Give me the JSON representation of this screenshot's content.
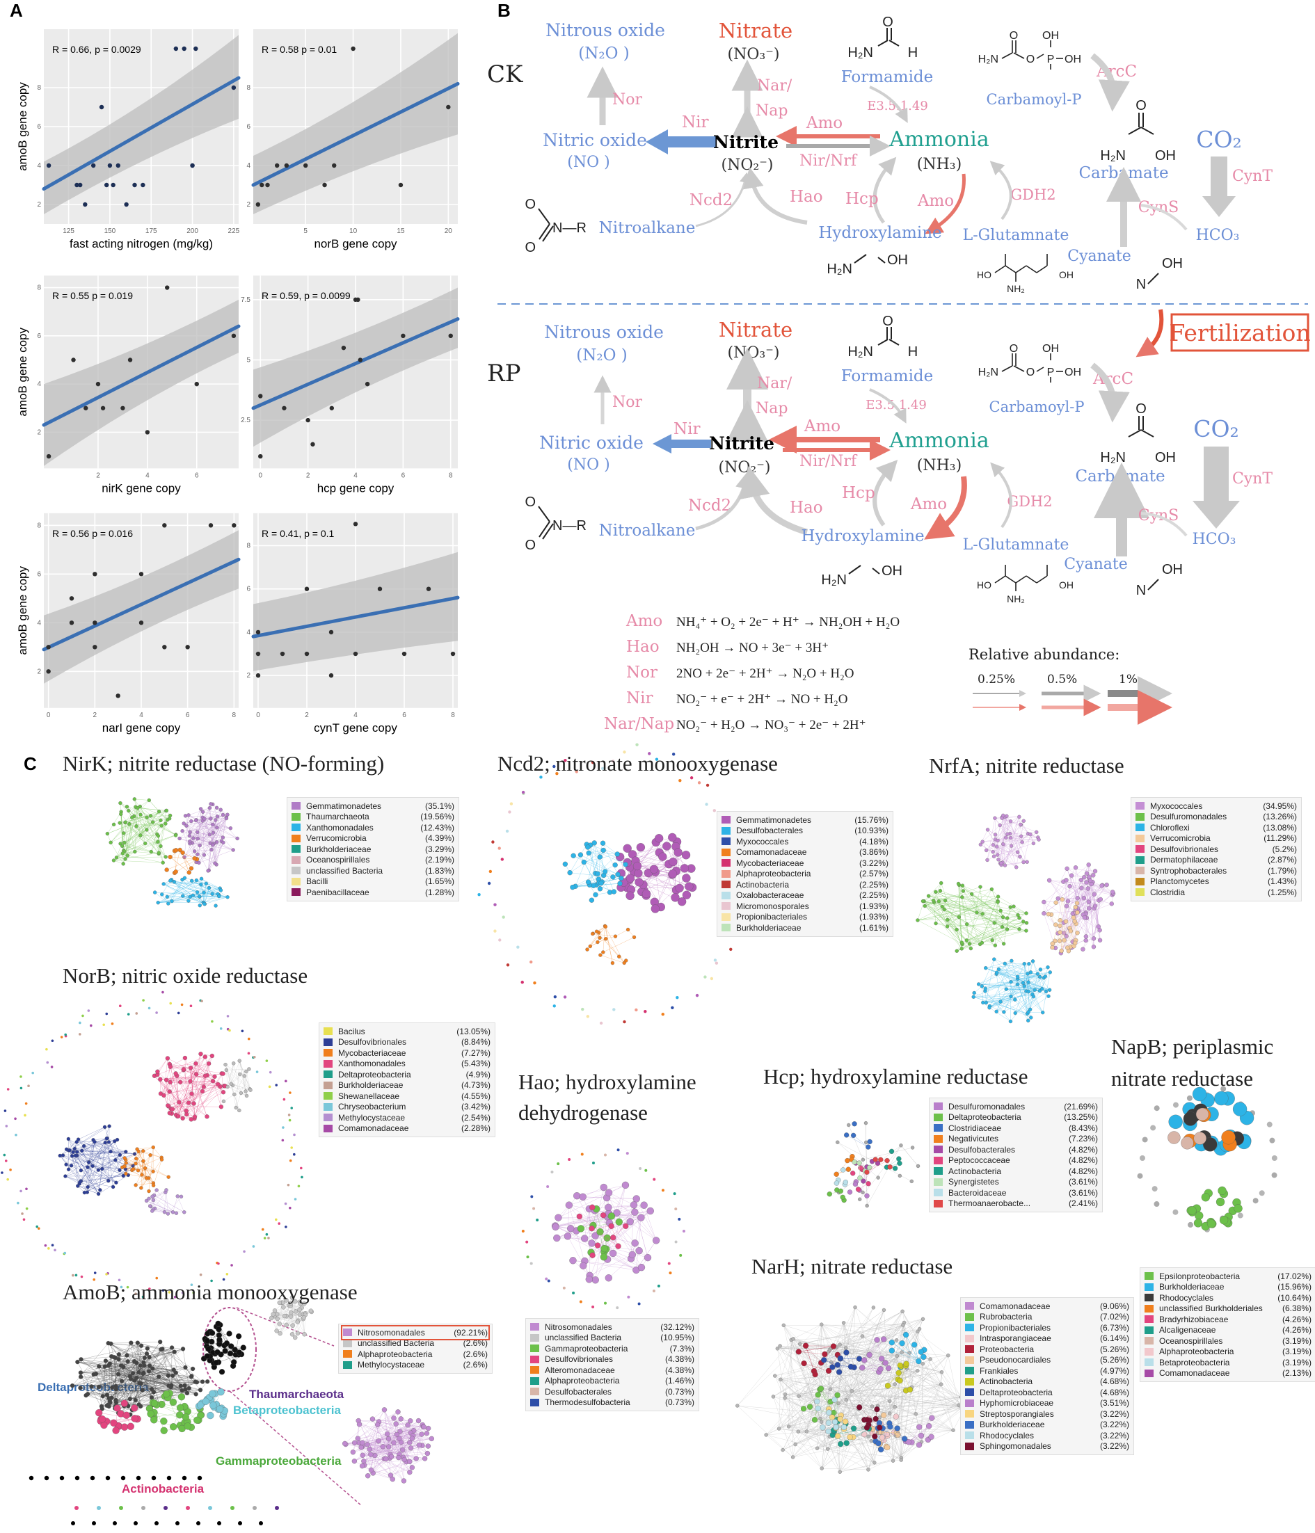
{
  "panel_labels": {
    "a": "A",
    "b": "B",
    "c": "C"
  },
  "chart_data": [
    {
      "type": "scatter",
      "title": "",
      "xlabel": "fast acting nitrogen (mg/kg)",
      "ylabel": "amoB gene copy",
      "stat": "R = 0.66, p = 0.0029",
      "x": [
        113,
        130,
        132,
        135,
        140,
        145,
        148,
        150,
        152,
        155,
        160,
        165,
        170,
        190,
        195,
        200,
        200,
        202,
        225
      ],
      "y": [
        4,
        3,
        3,
        2,
        4,
        7,
        3,
        4,
        3,
        4,
        2,
        3,
        3,
        10,
        10,
        4,
        4,
        10,
        8
      ],
      "xticks": [
        125,
        150,
        175,
        200,
        225
      ],
      "yticks": [
        2,
        4,
        6,
        8
      ],
      "xlim": [
        110,
        228
      ],
      "ylim": [
        1,
        11
      ],
      "fit": [
        2.8,
        8.5
      ],
      "ci_low": [
        1.5,
        6.4
      ],
      "ci_high": [
        4.2,
        10.7
      ]
    },
    {
      "type": "scatter",
      "title": "",
      "xlabel": "norB gene copy",
      "ylabel": "",
      "stat": "R = 0.58  p = 0.01",
      "x": [
        0,
        0.4,
        1,
        2,
        3,
        5,
        7,
        8,
        10,
        15,
        20
      ],
      "y": [
        2,
        3,
        3,
        4,
        4,
        4,
        3,
        4,
        10,
        3,
        7
      ],
      "xticks": [
        5,
        10,
        15,
        20
      ],
      "yticks": [
        2,
        4,
        6,
        8
      ],
      "xlim": [
        -0.5,
        21
      ],
      "ylim": [
        1,
        11
      ],
      "fit": [
        3.0,
        8.2
      ],
      "ci_low": [
        1.5,
        5.6
      ],
      "ci_high": [
        4.5,
        10.8
      ]
    },
    {
      "type": "scatter",
      "title": "",
      "xlabel": "nirK gene copy",
      "ylabel": "amoB gene copy",
      "stat": "R = 0.55  p = 0.019",
      "x": [
        0,
        1,
        1.5,
        2,
        2.2,
        3,
        3.3,
        4,
        4.8,
        6,
        7.5
      ],
      "y": [
        1,
        5,
        3,
        4,
        3,
        3,
        5,
        2,
        8,
        4,
        6
      ],
      "xticks": [
        2,
        4,
        6
      ],
      "yticks": [
        2,
        4,
        6,
        8
      ],
      "xlim": [
        -0.2,
        7.7
      ],
      "ylim": [
        0.5,
        8.5
      ],
      "fit": [
        2.3,
        6.4
      ],
      "ci_low": [
        0.6,
        5.3
      ],
      "ci_high": [
        4.0,
        7.5
      ]
    },
    {
      "type": "scatter",
      "title": "",
      "xlabel": "hcp gene copy",
      "ylabel": "",
      "stat": "R = 0.59, p = 0.0099",
      "x": [
        0,
        0,
        1,
        2,
        2.2,
        3,
        3.5,
        4,
        4.1,
        4.2,
        4.5,
        6,
        8
      ],
      "y": [
        1,
        3.5,
        3,
        2.5,
        1.5,
        3,
        5.5,
        7.5,
        7.5,
        5,
        4,
        6,
        6
      ],
      "xticks": [
        0,
        2,
        4,
        6,
        8
      ],
      "yticks": [
        2.5,
        5.0,
        7.5
      ],
      "xlim": [
        -0.3,
        8.3
      ],
      "ylim": [
        0.5,
        8.5
      ],
      "fit": [
        3.0,
        6.7
      ],
      "ci_low": [
        1.4,
        5.5
      ],
      "ci_high": [
        4.6,
        8.0
      ]
    },
    {
      "type": "scatter",
      "title": "",
      "xlabel": "narI gene copy",
      "ylabel": "amoB gene copy",
      "stat": "R = 0.56  p = 0.016",
      "x": [
        0,
        0,
        1,
        1,
        2,
        2,
        2,
        3,
        4,
        4,
        5,
        5,
        6,
        7,
        8
      ],
      "y": [
        2,
        3,
        5,
        4,
        4,
        3,
        6,
        1,
        4,
        6,
        3,
        8,
        3,
        8,
        8
      ],
      "xticks": [
        0,
        2,
        4,
        6,
        8
      ],
      "yticks": [
        2,
        4,
        6,
        8
      ],
      "xlim": [
        -0.2,
        8.2
      ],
      "ylim": [
        0.5,
        8.5
      ],
      "fit": [
        2.9,
        6.6
      ],
      "ci_low": [
        1.5,
        5.4
      ],
      "ci_high": [
        4.3,
        7.8
      ]
    },
    {
      "type": "scatter",
      "title": "",
      "xlabel": "cynT gene copy",
      "ylabel": "",
      "stat": "R = 0.41, p = 0.1",
      "x": [
        0,
        0,
        0,
        1,
        2,
        2,
        3,
        3,
        4,
        4,
        5,
        6,
        7,
        8
      ],
      "y": [
        2,
        3,
        4,
        3,
        3,
        6,
        4,
        2,
        9,
        3,
        6,
        3,
        6,
        3
      ],
      "xticks": [
        0,
        2,
        4,
        6,
        8
      ],
      "yticks": [
        2,
        4,
        6,
        8
      ],
      "xlim": [
        -0.2,
        8.2
      ],
      "ylim": [
        0.5,
        9.5
      ],
      "fit": [
        3.8,
        5.6
      ],
      "ci_low": [
        2.2,
        3.6
      ],
      "ci_high": [
        5.3,
        7.7
      ]
    }
  ],
  "pathway": {
    "ck_label": "CK",
    "rp_label": "RP",
    "fertilization": "Fertilization",
    "nitrous_oxide": "Nitrous oxide",
    "n2o": "(N₂O )",
    "nitrate": "Nitrate",
    "no3": "(NO₃⁻)",
    "formamide": "Formamide",
    "carbamoyl_p": "Carbamoyl-P",
    "arcc": "ArcC",
    "nor": "Nor",
    "nar_nap": "Nar/\nNap",
    "nar": "Nar/",
    "nap": "Nap",
    "nir": "Nir",
    "amo_enzyme": "Amo",
    "ec": "E3.5.1.49",
    "nitric_oxide": "Nitric oxide",
    "no": "(NO )",
    "nitrite": "Nitrite",
    "no2": "(NO₂⁻)",
    "nir_nrf": "Nir/Nrf",
    "ammonia": "Ammonia",
    "nh3": "(NH₃)",
    "co2": "CO₂",
    "carbamate": "Carbamate",
    "cynt": "CynT",
    "ncd2": "Ncd2",
    "hao": "Hao",
    "hcp": "Hcp",
    "gdh2": "GDH2",
    "cyns": "CynS",
    "nitroalkane": "Nitroalkane",
    "hydroxylamine": "Hydroxylamine",
    "l_glutamate": "L-Glutamnate",
    "cyanate": "Cyanate",
    "hco3": "HCO₃",
    "f_formamide": "H₂N",
    "f_h": "H",
    "f_o": "O",
    "cp_h2n": "H₂N",
    "cp_oh1": "OH",
    "cp_oh2": "OH",
    "cp_p": "P",
    "cp_o": "O",
    "carb_h2n": "H₂N",
    "carb_oh": "OH",
    "carb_o": "O",
    "nitro_r": "N—R",
    "nitro_o": "O",
    "hyd_h2n": "H₂N",
    "hyd_oh": "OH",
    "glu_ho": "HO",
    "glu_oh": "OH",
    "glu_nh2": "NH₂",
    "glu_o1": "O",
    "glu_o2": "O",
    "cyan_n": "N",
    "cyan_oh": "OH"
  },
  "equations": [
    {
      "enzyme": "Amo",
      "eq": "NH₄⁺ + O₂ + 2e⁻ + H⁺ → NH₂OH + H₂O"
    },
    {
      "enzyme": "Hao",
      "eq": "NH₂OH → NO + 3e⁻ + 3H⁺"
    },
    {
      "enzyme": "Nor",
      "eq": "2NO + 2e⁻ + 2H⁺ → N₂O + H₂O"
    },
    {
      "enzyme": "Nir",
      "eq": "NO₂⁻ + e⁻ + 2H⁺ → NO + H₂O"
    },
    {
      "enzyme": "Nar/Nap",
      "eq": "NO₂⁻ + H₂O → NO₃⁻ + 2e⁻ + 2H⁺"
    }
  ],
  "abundance": {
    "title": "Relative abundance:",
    "levels": [
      "0.25%",
      "0.5%",
      "1%"
    ]
  },
  "networks": [
    {
      "id": "nirk",
      "title": "NirK; nitrite reductase (NO-forming)",
      "legend": [
        [
          "Gemmatimonadetes",
          "(35.1%)",
          "#b07cc6"
        ],
        [
          "Thaumarchaeota",
          "(19.56%)",
          "#6cc04a"
        ],
        [
          "Xanthomonadales",
          "(12.43%)",
          "#2db3e6"
        ],
        [
          "Verrucomicrobia",
          "(4.39%)",
          "#f07f1d"
        ],
        [
          "Burkholderiaceae",
          "(3.29%)",
          "#1f9e8a"
        ],
        [
          "Oceanospirillales",
          "(2.19%)",
          "#d8a8b2"
        ],
        [
          "unclassified Bacteria",
          "(1.83%)",
          "#c6c6c6"
        ],
        [
          "Bacilli",
          "(1.65%)",
          "#f2e08a"
        ],
        [
          "Paenibacillaceae",
          "(1.28%)",
          "#8a1a5c"
        ]
      ]
    },
    {
      "id": "ncd2",
      "title": "Ncd2; nitronate monooxygenase",
      "legend": [
        [
          "Gemmatimonadetes",
          "(15.76%)",
          "#b05cb6"
        ],
        [
          "Desulfobacterales",
          "(10.93%)",
          "#2db3e6"
        ],
        [
          "Myxococcales",
          "(4.18%)",
          "#2d4ea8"
        ],
        [
          "Comamonadaceae",
          "(3.86%)",
          "#f07f1d"
        ],
        [
          "Mycobacteriaceae",
          "(3.22%)",
          "#d4316f"
        ],
        [
          "Alphaproteobacteria",
          "(2.57%)",
          "#f09a8a"
        ],
        [
          "Actinobacteria",
          "(2.25%)",
          "#c03a35"
        ],
        [
          "Oxalobacteraceae",
          "(2.25%)",
          "#b9dfe9"
        ],
        [
          "Micromonosporales",
          "(1.93%)",
          "#e9c6d0"
        ],
        [
          "Propionibacteriales",
          "(1.93%)",
          "#f8e4a6"
        ],
        [
          "Burkholderiaceae",
          "(1.61%)",
          "#bde3b9"
        ]
      ]
    },
    {
      "id": "nrfa",
      "title": "NrfA; nitrite reductase",
      "legend": [
        [
          "Myxococcales",
          "(34.95%)",
          "#c48fd4"
        ],
        [
          "Desulfuromonadales",
          "(13.26%)",
          "#6cc04a"
        ],
        [
          "Chloroflexi",
          "(13.08%)",
          "#2db3e6"
        ],
        [
          "Verrucomicrobia",
          "(11.29%)",
          "#f3c99a"
        ],
        [
          "Desulfovibrionales",
          "(5.2%)",
          "#e2457f"
        ],
        [
          "Dermatophilaceae",
          "(2.87%)",
          "#1f9e8a"
        ],
        [
          "Syntrophobacterales",
          "(1.79%)",
          "#d8b5a8"
        ],
        [
          "Planctomycetes",
          "(1.43%)",
          "#c28a1c"
        ],
        [
          "Clostridia",
          "(1.25%)",
          "#e0e05a"
        ]
      ]
    },
    {
      "id": "norb",
      "title": "NorB; nitric oxide reductase",
      "legend": [
        [
          "Bacilus",
          "(13.05%)",
          "#e8e050"
        ],
        [
          "Desulfovibrionales",
          "(8.84%)",
          "#2d3e96"
        ],
        [
          "Mycobacteriaceae",
          "(7.27%)",
          "#f07f1d"
        ],
        [
          "Xanthomonadales",
          "(5.43%)",
          "#e2457f"
        ],
        [
          "Deltaproteobacteria",
          "(4.9%)",
          "#1f9e8a"
        ],
        [
          "Burkholderiaceae",
          "(4.73%)",
          "#c4a092"
        ],
        [
          "Shewanellaceae",
          "(4.55%)",
          "#8fcf4a"
        ],
        [
          "Chryseobacterium",
          "(3.42%)",
          "#7ac7d9"
        ],
        [
          "Methylocystaceae",
          "(2.54%)",
          "#b48fd0"
        ],
        [
          "Comamonadaceae",
          "(2.28%)",
          "#a64aa6"
        ]
      ]
    },
    {
      "id": "hao",
      "title": "Hao; hydroxylamine",
      "title2": "dehydrogenase",
      "legend": [
        [
          "Nitrosomonadales",
          "(32.12%)",
          "#c08ad0"
        ],
        [
          "unclassified Bacteria",
          "(10.95%)",
          "#c6c6c6"
        ],
        [
          "Gammaproteobacteria",
          "(7.3%)",
          "#6cc04a"
        ],
        [
          "Desulfovibrionales",
          "(4.38%)",
          "#e2457f"
        ],
        [
          "Alteromonadaceae",
          "(4.38%)",
          "#f07f1d"
        ],
        [
          "Alphaproteobacteria",
          "(1.46%)",
          "#1f9e8a"
        ],
        [
          "Desulfobacterales",
          "(0.73%)",
          "#d8b5a8"
        ],
        [
          "Thermodesulfobacteria",
          "(0.73%)",
          "#2d4ea8"
        ]
      ]
    },
    {
      "id": "hcp",
      "title": "Hcp; hydroxylamine reductase",
      "legend": [
        [
          "Desulfuromonadales",
          "(21.69%)",
          "#b97fcb"
        ],
        [
          "Deltaproteobacteria",
          "(13.25%)",
          "#6cc04a"
        ],
        [
          "Clostridiaceae",
          "(8.43%)",
          "#3a6fc4"
        ],
        [
          "Negativicutes",
          "(7.23%)",
          "#f07f1d"
        ],
        [
          "Desulfobacterales",
          "(4.82%)",
          "#a64aa6"
        ],
        [
          "Peptococcaceae",
          "(4.82%)",
          "#e2457f"
        ],
        [
          "Actinobacteria",
          "(4.82%)",
          "#1f9e8a"
        ],
        [
          "Synergistetes",
          "(3.61%)",
          "#bde3b9"
        ],
        [
          "Bacteroidaceae",
          "(3.61%)",
          "#b9dfe9"
        ],
        [
          "Thermoanaerobacte...",
          "(2.41%)",
          "#e04848"
        ]
      ]
    },
    {
      "id": "napb",
      "title": "NapB; periplasmic",
      "title2": "nitrate reductase",
      "legend": [
        [
          "Epsilonproteobacteria",
          "(17.02%)",
          "#6cc04a"
        ],
        [
          "Burkholderiaceae",
          "(15.96%)",
          "#2db3e6"
        ],
        [
          "Rhodocyclales",
          "(10.64%)",
          "#3a3a3a"
        ],
        [
          "unclassified Burkholderiales",
          "(6.38%)",
          "#f07f1d"
        ],
        [
          "Bradyrhizobiaceae",
          "(4.26%)",
          "#e2457f"
        ],
        [
          "Alcaligenaceae",
          "(4.26%)",
          "#1f9e8a"
        ],
        [
          "Oceanospirillales",
          "(3.19%)",
          "#d8b5a8"
        ],
        [
          "Alphaproteobacteria",
          "(3.19%)",
          "#f2c8cc"
        ],
        [
          "Betaproteobacteria",
          "(3.19%)",
          "#b9dfe9"
        ],
        [
          "Comamonadaceae",
          "(2.13%)",
          "#a64aa6"
        ]
      ]
    },
    {
      "id": "amob",
      "title": "AmoB; ammonia monooxygenase",
      "legend": [
        [
          "Nitrosomonadales",
          "(92.21%)",
          "#c08ad0"
        ],
        [
          "unclassified Bacteria",
          "(2.6%)",
          "#c6c6c6"
        ],
        [
          "Alphaproteobacteria",
          "(2.6%)",
          "#f07f1d"
        ],
        [
          "Methylocystaceae",
          "(2.6%)",
          "#1f9e8a"
        ]
      ],
      "labels": {
        "delta": "Deltaproteobacteria",
        "thaum": "Thaumarchaeota",
        "beta": "Betaproteobacteria",
        "gamma": "Gammaproteobacteria",
        "actino": "Actinobacteria"
      }
    },
    {
      "id": "narh",
      "title": "NarH; nitrate reductase",
      "legend": [
        [
          "Comamonadaceae",
          "(9.06%)",
          "#c08ad0"
        ],
        [
          "Rubrobacteria",
          "(7.02%)",
          "#6cc04a"
        ],
        [
          "Propionibacteriales",
          "(6.73%)",
          "#2db3e6"
        ],
        [
          "Intrasporangiaceae",
          "(6.14%)",
          "#f2c8cc"
        ],
        [
          "Proteobacteria",
          "(5.26%)",
          "#b0213a"
        ],
        [
          "Pseudonocardiales",
          "(5.26%)",
          "#f3c99a"
        ],
        [
          "Frankiales",
          "(4.97%)",
          "#1f9e8a"
        ],
        [
          "Actinobacteria",
          "(4.68%)",
          "#c9c920"
        ],
        [
          "Deltaproteobacteria",
          "(4.68%)",
          "#2d4ea8"
        ],
        [
          "Hyphomicrobiaceae",
          "(3.51%)",
          "#b97fcb"
        ],
        [
          "Streptosporangiales",
          "(3.22%)",
          "#f8d580"
        ],
        [
          "Burkholderiaceae",
          "(3.22%)",
          "#3a6fc4"
        ],
        [
          "Rhodocyclales",
          "(3.22%)",
          "#b9dfe9"
        ],
        [
          "Sphingomonadales",
          "(3.22%)",
          "#7a1030"
        ]
      ]
    }
  ]
}
